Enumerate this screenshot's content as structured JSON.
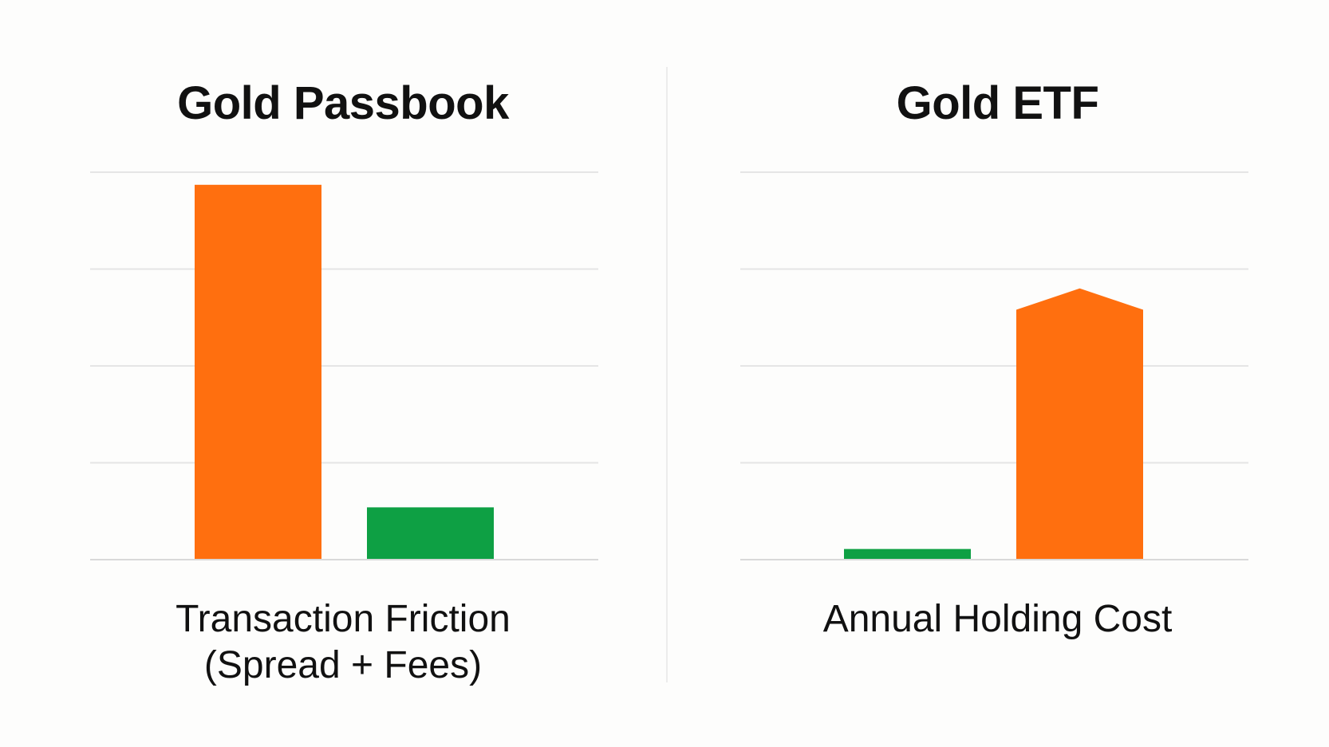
{
  "colors": {
    "orange": "#ff6f0f",
    "green": "#0ea044",
    "grid": "#e5e5e5",
    "baseline": "#d9d9d9",
    "background": "#fdfdfc"
  },
  "chart_data": [
    {
      "type": "bar",
      "title": "Gold Passbook",
      "xlabel": "Transaction Friction\n(Spread + Fees)",
      "ylabel": "",
      "ylim": [
        0,
        4
      ],
      "grid": true,
      "tick_labels_visible": false,
      "categories": [
        "",
        ""
      ],
      "values": [
        3.87,
        0.54
      ],
      "bar_colors": [
        "orange",
        "green"
      ]
    },
    {
      "type": "bar",
      "title": "Gold ETF",
      "xlabel": "Annual Holding Cost",
      "ylabel": "",
      "ylim": [
        0,
        4
      ],
      "grid": true,
      "tick_labels_visible": false,
      "categories": [
        "",
        ""
      ],
      "values": [
        0.11,
        2.58
      ],
      "peak_values": [
        0.11,
        2.8
      ],
      "bar_colors": [
        "green",
        "orange"
      ]
    }
  ]
}
